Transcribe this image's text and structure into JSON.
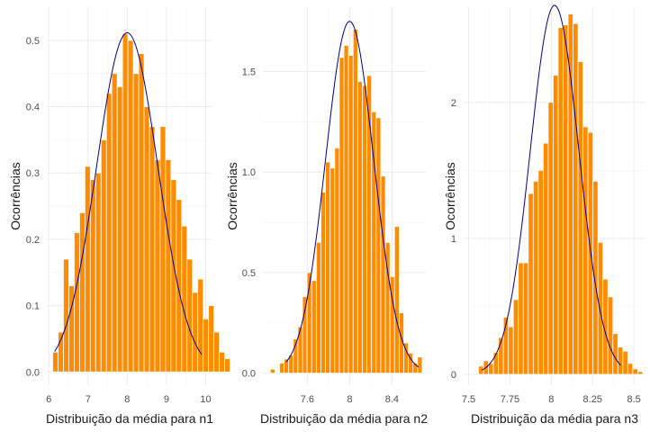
{
  "colors": {
    "bar": "#ff8c00",
    "curve": "#00008b",
    "grid": "#ebebeb"
  },
  "chart_data": [
    {
      "type": "histogram",
      "xlabel": "Distribuição da média para n1",
      "ylabel": "Ocorrências",
      "xlim": [
        5.95,
        10.15
      ],
      "ylim": [
        -0.02,
        0.55
      ],
      "xticks": [
        6,
        7,
        8,
        9,
        10
      ],
      "yticks": [
        0.0,
        0.1,
        0.2,
        0.3,
        0.4,
        0.5
      ],
      "ytick_labels": [
        "0.0",
        "0.1",
        "0.2",
        "0.3",
        "0.4",
        "0.5"
      ],
      "bins": {
        "start": 6.1,
        "width": 0.137,
        "values": [
          0.03,
          0.06,
          0.17,
          0.13,
          0.21,
          0.24,
          0.31,
          0.29,
          0.3,
          0.35,
          0.42,
          0.45,
          0.43,
          0.51,
          0.5,
          0.45,
          0.48,
          0.4,
          0.37,
          0.32,
          0.37,
          0.32,
          0.29,
          0.26,
          0.22,
          0.17,
          0.12,
          0.14,
          0.08,
          0.1,
          0.06,
          0.03,
          0.02
        ]
      },
      "density": {
        "mean": 8.0,
        "sd": 0.78,
        "x_range": [
          6.15,
          9.9
        ]
      }
    },
    {
      "type": "histogram",
      "xlabel": "Distribuição da média para n2",
      "ylabel": "Ocorrências",
      "xlim": [
        7.18,
        8.72
      ],
      "ylim": [
        -0.06,
        1.82
      ],
      "xticks": [
        7.6,
        8.0,
        8.4
      ],
      "yticks": [
        0.0,
        0.5,
        1.0,
        1.5
      ],
      "ytick_labels": [
        "0.0",
        "0.5",
        "1.0",
        "1.5"
      ],
      "bins": {
        "start": 7.25,
        "width": 0.0435,
        "values": [
          0.02,
          0.0,
          0.05,
          0.07,
          0.09,
          0.17,
          0.23,
          0.38,
          0.5,
          0.46,
          0.65,
          0.9,
          1.05,
          1.02,
          1.12,
          1.57,
          1.63,
          1.58,
          1.71,
          1.45,
          1.43,
          1.48,
          1.3,
          1.27,
          0.98,
          0.65,
          0.48,
          0.73,
          0.3,
          0.15,
          0.1,
          0.05,
          0.08
        ]
      },
      "density": {
        "mean": 8.0,
        "sd": 0.228,
        "x_range": [
          7.4,
          8.65
        ]
      }
    },
    {
      "type": "histogram",
      "xlabel": "Distribuição da média para n3",
      "ylabel": "Ocorrências",
      "xlim": [
        7.47,
        8.57
      ],
      "ylim": [
        -0.08,
        2.7
      ],
      "xticks": [
        7.5,
        7.75,
        8.0,
        8.25,
        8.5
      ],
      "yticks": [
        0,
        1,
        2
      ],
      "ytick_labels": [
        "0",
        "1",
        "2"
      ],
      "bins": {
        "start": 7.56,
        "width": 0.0301,
        "values": [
          0.06,
          0.1,
          0.08,
          0.16,
          0.27,
          0.42,
          0.35,
          0.55,
          0.82,
          0.82,
          1.33,
          1.42,
          1.5,
          1.7,
          2.0,
          2.2,
          2.55,
          2.57,
          2.65,
          2.58,
          2.3,
          1.82,
          1.78,
          1.42,
          0.97,
          0.7,
          0.57,
          0.3,
          0.2,
          0.17,
          0.08,
          0.04,
          0.02,
          0.0,
          0.0,
          0.04
        ]
      },
      "density": {
        "mean": 8.02,
        "sd": 0.147,
        "x_range": [
          7.58,
          8.42
        ]
      }
    }
  ]
}
